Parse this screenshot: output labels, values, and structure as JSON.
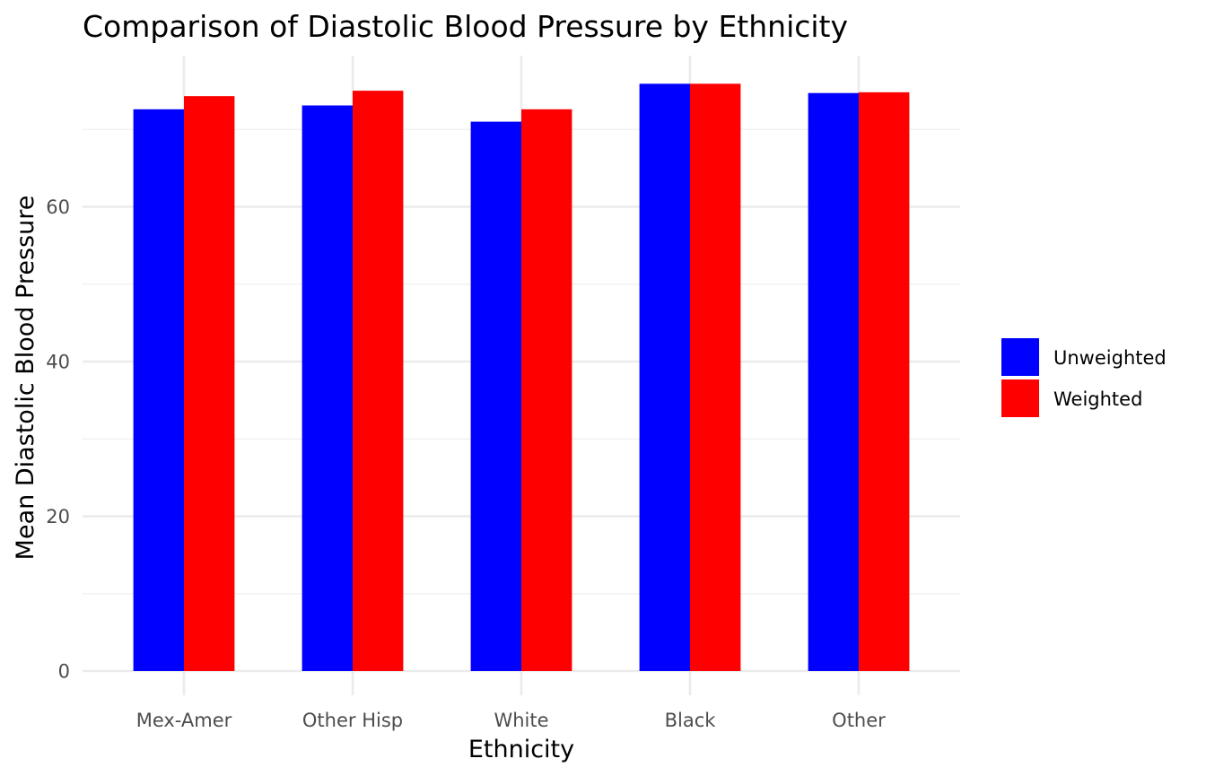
{
  "chart_data": {
    "type": "bar",
    "title": "Comparison of Diastolic Blood Pressure by Ethnicity",
    "xlabel": "Ethnicity",
    "ylabel": "Mean Diastolic Blood Pressure",
    "categories": [
      "Mex-Amer",
      "Other Hisp",
      "White",
      "Black",
      "Other"
    ],
    "series": [
      {
        "name": "Unweighted",
        "color": "#0000ff",
        "values": [
          72.6,
          73.1,
          71.0,
          75.9,
          74.7
        ]
      },
      {
        "name": "Weighted",
        "color": "#ff0000",
        "values": [
          74.3,
          75.0,
          72.6,
          75.9,
          74.8
        ]
      }
    ],
    "ylim": [
      0,
      80
    ],
    "yticks": [
      0,
      20,
      40,
      60
    ],
    "ytick_labels": [
      "0",
      "20",
      "40",
      "60"
    ],
    "grid": true,
    "legend_position": "right"
  }
}
